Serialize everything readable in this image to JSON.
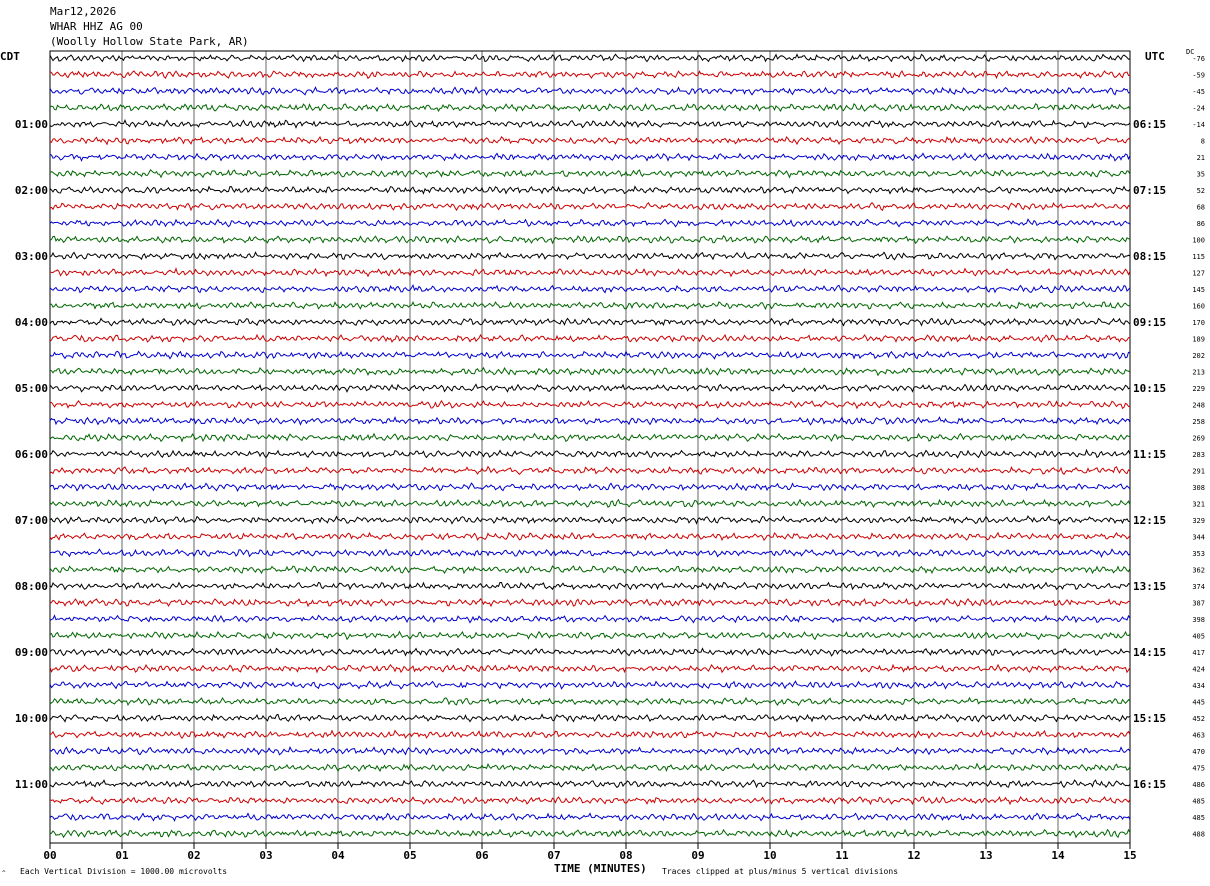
{
  "header": {
    "date": "Mar12,2026",
    "channel": "WHAR HHZ AG 00",
    "station": "(Woolly Hollow State Park, AR)"
  },
  "left_axis_title": "CDT",
  "right_axis_title": "UTC",
  "dc_title": "DC",
  "colors": {
    "trace_cycle": [
      "#000000",
      "#cc0000",
      "#0000cc",
      "#006600"
    ],
    "grid": "#000000"
  },
  "footer": {
    "mark": "^",
    "left": "Each Vertical Division = 1000.00 microvolts",
    "right": "Traces clipped at plus/minus 5 vertical divisions"
  },
  "chart_data": {
    "type": "line",
    "title": "",
    "xlabel": "TIME (MINUTES)",
    "xlim": [
      0,
      15
    ],
    "x_ticks": [
      "00",
      "01",
      "02",
      "03",
      "04",
      "05",
      "06",
      "07",
      "08",
      "09",
      "10",
      "11",
      "12",
      "13",
      "14",
      "15"
    ],
    "row_count": 48,
    "left_hour_labels": [
      "01:00",
      "02:00",
      "03:00",
      "04:00",
      "05:00",
      "06:00",
      "07:00",
      "08:00",
      "09:00",
      "10:00",
      "11:00"
    ],
    "right_hour_labels": [
      "06:15",
      "07:15",
      "08:15",
      "09:15",
      "10:15",
      "11:15",
      "12:15",
      "13:15",
      "14:15",
      "15:15",
      "16:15"
    ],
    "dc_offsets": [
      "-76",
      "-59",
      "-45",
      "-24",
      "-14",
      "8",
      "21",
      "35",
      "52",
      "68",
      "86",
      "100",
      "115",
      "127",
      "145",
      "160",
      "170",
      "189",
      "202",
      "213",
      "229",
      "248",
      "258",
      "269",
      "283",
      "291",
      "308",
      "321",
      "329",
      "344",
      "353",
      "362",
      "374",
      "387",
      "398",
      "405",
      "417",
      "424",
      "434",
      "445",
      "452",
      "463",
      "470",
      "475",
      "486",
      "485",
      "485",
      "488"
    ]
  }
}
